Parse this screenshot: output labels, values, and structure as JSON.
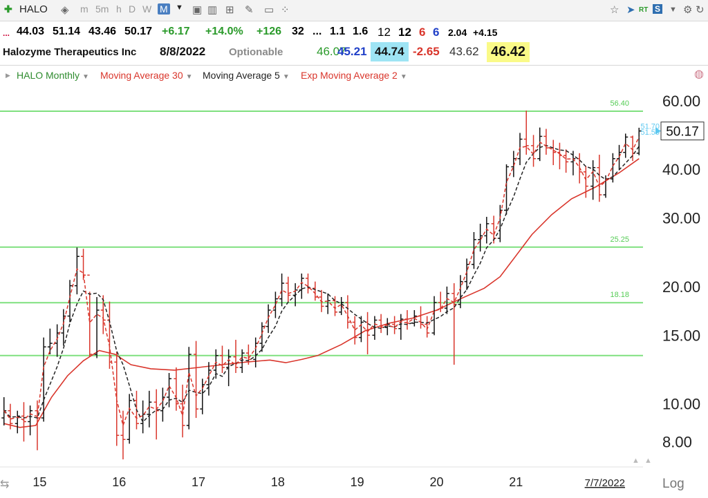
{
  "toolbar": {
    "symbol": "HALO",
    "timeframes": [
      "m",
      "5m",
      "h",
      "D",
      "W",
      "M"
    ],
    "selected_timeframe": "M",
    "icons": [
      "add-icon",
      "toggle-icon",
      "camera-icon",
      "bar-chart-icon",
      "table-icon",
      "pencil-icon",
      "chat-icon",
      "dots-icon",
      "star-icon",
      "pin-icon",
      "rt-icon",
      "s-icon",
      "gear-icon",
      "refresh-icon"
    ],
    "rt_label": "RT",
    "s_label": "S"
  },
  "quote": {
    "prefix": "...",
    "open": "44.03",
    "high": "51.14",
    "low": "43.46",
    "close": "50.17",
    "change": "+6.17",
    "change_pct": "+14.0%",
    "v1": "+126",
    "v2": "32",
    "v3": "...",
    "v4": "1.1",
    "v5": "1.6",
    "v6": "12",
    "v7": "12",
    "v8": "6",
    "v9": "6",
    "v10": "2.04",
    "v11": "+4.15"
  },
  "info": {
    "company": "Halozyme Therapeutics Inc",
    "date": "8/8/2022",
    "optionable": "Optionable",
    "f1": "46.07",
    "f2": "45.21",
    "f3": "44.74",
    "f4": "-2.65",
    "f5": "43.62",
    "f6": "46.42"
  },
  "legend": [
    {
      "label": "HALO Monthly",
      "color": "#2e8b2e"
    },
    {
      "label": "Moving Average 30",
      "color": "#d9352b"
    },
    {
      "label": "Moving Average 5",
      "color": "#222222"
    },
    {
      "label": "Exp Moving Average 2",
      "color": "#d9352b"
    }
  ],
  "chart_data": {
    "type": "line",
    "scale": "log",
    "ylim": [
      7,
      64
    ],
    "y_ticks": [
      "60.00",
      "40.00",
      "30.00",
      "20.00",
      "15.00",
      "10.00",
      "8.00"
    ],
    "x_ticks": [
      "15",
      "16",
      "17",
      "18",
      "19",
      "20",
      "21"
    ],
    "x_domain": [
      2014.5,
      2022.6
    ],
    "date_label": "7/7/2022",
    "axis_mode": "Log",
    "last_price": "50.17",
    "price_labels": [
      "51.70",
      "51.50"
    ],
    "horizontal_lines": [
      {
        "value": 56.4,
        "label": "56.40"
      },
      {
        "value": 25.25,
        "label": "25.25"
      },
      {
        "value": 18.18,
        "label": "18.18"
      },
      {
        "value": 13.3,
        "label": ""
      }
    ],
    "colors": {
      "hline": "#7fe07f",
      "hline_label": "#55cc55",
      "ma30": "#d9352b",
      "ma5": "#222222",
      "ema2": "#d9352b",
      "bar_up": "#111111",
      "bar_down": "#d9352b",
      "price_label": "#5cc8f0"
    },
    "bars": [
      {
        "t": 2014.55,
        "o": 9.2,
        "h": 10.4,
        "l": 8.8,
        "c": 9.6
      },
      {
        "t": 2014.63,
        "o": 9.6,
        "h": 10.0,
        "l": 8.6,
        "c": 8.9
      },
      {
        "t": 2014.72,
        "o": 8.9,
        "h": 9.6,
        "l": 8.4,
        "c": 9.3
      },
      {
        "t": 2014.8,
        "o": 9.3,
        "h": 10.1,
        "l": 8.0,
        "c": 9.0
      },
      {
        "t": 2014.88,
        "o": 9.0,
        "h": 9.9,
        "l": 8.3,
        "c": 9.6
      },
      {
        "t": 2014.97,
        "o": 9.6,
        "h": 10.2,
        "l": 7.6,
        "c": 9.2
      },
      {
        "t": 2015.05,
        "o": 9.2,
        "h": 14.8,
        "l": 9.0,
        "c": 14.0
      },
      {
        "t": 2015.13,
        "o": 14.0,
        "h": 15.6,
        "l": 13.4,
        "c": 14.3
      },
      {
        "t": 2015.22,
        "o": 14.3,
        "h": 16.0,
        "l": 13.2,
        "c": 15.2
      },
      {
        "t": 2015.3,
        "o": 15.2,
        "h": 17.5,
        "l": 14.1,
        "c": 16.8
      },
      {
        "t": 2015.38,
        "o": 16.8,
        "h": 20.8,
        "l": 16.2,
        "c": 20.1
      },
      {
        "t": 2015.47,
        "o": 20.1,
        "h": 25.2,
        "l": 19.1,
        "c": 23.9
      },
      {
        "t": 2015.55,
        "o": 23.9,
        "h": 25.0,
        "l": 20.8,
        "c": 21.4
      },
      {
        "t": 2015.63,
        "o": 21.4,
        "h": 19.4,
        "l": 13.2,
        "c": 13.4
      },
      {
        "t": 2015.72,
        "o": 13.4,
        "h": 18.8,
        "l": 13.1,
        "c": 17.4
      },
      {
        "t": 2015.8,
        "o": 17.4,
        "h": 19.0,
        "l": 15.1,
        "c": 16.4
      },
      {
        "t": 2015.88,
        "o": 16.4,
        "h": 18.3,
        "l": 12.3,
        "c": 12.8
      },
      {
        "t": 2015.97,
        "o": 12.8,
        "h": 13.6,
        "l": 7.8,
        "c": 8.3
      },
      {
        "t": 2016.05,
        "o": 8.3,
        "h": 9.6,
        "l": 7.2,
        "c": 8.1
      },
      {
        "t": 2016.13,
        "o": 8.1,
        "h": 10.6,
        "l": 7.9,
        "c": 10.2
      },
      {
        "t": 2016.22,
        "o": 10.2,
        "h": 10.8,
        "l": 8.6,
        "c": 8.9
      },
      {
        "t": 2016.3,
        "o": 8.9,
        "h": 10.2,
        "l": 8.4,
        "c": 9.4
      },
      {
        "t": 2016.38,
        "o": 9.4,
        "h": 10.8,
        "l": 8.7,
        "c": 10.1
      },
      {
        "t": 2016.47,
        "o": 10.1,
        "h": 10.9,
        "l": 8.1,
        "c": 9.6
      },
      {
        "t": 2016.55,
        "o": 9.6,
        "h": 11.0,
        "l": 9.0,
        "c": 10.4
      },
      {
        "t": 2016.63,
        "o": 10.4,
        "h": 12.0,
        "l": 9.8,
        "c": 11.6
      },
      {
        "t": 2016.72,
        "o": 11.6,
        "h": 12.4,
        "l": 9.6,
        "c": 10.0
      },
      {
        "t": 2016.8,
        "o": 10.0,
        "h": 11.2,
        "l": 8.2,
        "c": 8.8
      },
      {
        "t": 2016.88,
        "o": 8.8,
        "h": 14.0,
        "l": 8.6,
        "c": 13.4
      },
      {
        "t": 2016.97,
        "o": 13.4,
        "h": 14.5,
        "l": 9.2,
        "c": 9.7
      },
      {
        "t": 2017.05,
        "o": 9.7,
        "h": 11.6,
        "l": 9.4,
        "c": 11.2
      },
      {
        "t": 2017.13,
        "o": 11.2,
        "h": 12.8,
        "l": 10.5,
        "c": 12.2
      },
      {
        "t": 2017.22,
        "o": 12.2,
        "h": 13.8,
        "l": 11.6,
        "c": 13.3
      },
      {
        "t": 2017.3,
        "o": 13.3,
        "h": 14.1,
        "l": 12.0,
        "c": 12.4
      },
      {
        "t": 2017.38,
        "o": 12.4,
        "h": 13.8,
        "l": 11.1,
        "c": 13.2
      },
      {
        "t": 2017.47,
        "o": 13.2,
        "h": 14.6,
        "l": 12.0,
        "c": 12.4
      },
      {
        "t": 2017.55,
        "o": 12.4,
        "h": 13.8,
        "l": 12.0,
        "c": 13.5
      },
      {
        "t": 2017.63,
        "o": 13.5,
        "h": 14.2,
        "l": 12.6,
        "c": 13.0
      },
      {
        "t": 2017.72,
        "o": 13.0,
        "h": 14.8,
        "l": 12.4,
        "c": 14.3
      },
      {
        "t": 2017.8,
        "o": 14.3,
        "h": 16.2,
        "l": 13.6,
        "c": 15.8
      },
      {
        "t": 2017.88,
        "o": 15.8,
        "h": 18.0,
        "l": 15.2,
        "c": 17.4
      },
      {
        "t": 2017.97,
        "o": 17.4,
        "h": 19.4,
        "l": 16.6,
        "c": 18.6
      },
      {
        "t": 2018.05,
        "o": 18.6,
        "h": 21.6,
        "l": 17.8,
        "c": 20.4
      },
      {
        "t": 2018.13,
        "o": 20.4,
        "h": 21.2,
        "l": 18.2,
        "c": 19.0
      },
      {
        "t": 2018.22,
        "o": 19.0,
        "h": 20.4,
        "l": 17.8,
        "c": 19.6
      },
      {
        "t": 2018.3,
        "o": 19.6,
        "h": 21.6,
        "l": 18.6,
        "c": 21.0
      },
      {
        "t": 2018.38,
        "o": 21.0,
        "h": 21.6,
        "l": 19.2,
        "c": 19.8
      },
      {
        "t": 2018.47,
        "o": 19.8,
        "h": 20.6,
        "l": 18.4,
        "c": 18.8
      },
      {
        "t": 2018.55,
        "o": 18.8,
        "h": 19.6,
        "l": 17.2,
        "c": 17.8
      },
      {
        "t": 2018.63,
        "o": 17.8,
        "h": 19.2,
        "l": 17.0,
        "c": 18.4
      },
      {
        "t": 2018.72,
        "o": 18.4,
        "h": 18.9,
        "l": 16.8,
        "c": 17.2
      },
      {
        "t": 2018.8,
        "o": 17.2,
        "h": 18.8,
        "l": 16.9,
        "c": 18.2
      },
      {
        "t": 2018.88,
        "o": 18.2,
        "h": 19.0,
        "l": 15.6,
        "c": 16.2
      },
      {
        "t": 2018.97,
        "o": 16.2,
        "h": 16.8,
        "l": 14.2,
        "c": 14.8
      },
      {
        "t": 2019.05,
        "o": 14.8,
        "h": 16.8,
        "l": 14.4,
        "c": 16.2
      },
      {
        "t": 2019.13,
        "o": 16.2,
        "h": 17.2,
        "l": 13.4,
        "c": 15.0
      },
      {
        "t": 2019.22,
        "o": 15.0,
        "h": 16.8,
        "l": 14.6,
        "c": 16.4
      },
      {
        "t": 2019.3,
        "o": 16.4,
        "h": 17.0,
        "l": 15.2,
        "c": 15.7
      },
      {
        "t": 2019.38,
        "o": 15.7,
        "h": 16.6,
        "l": 15.0,
        "c": 16.0
      },
      {
        "t": 2019.47,
        "o": 16.0,
        "h": 16.8,
        "l": 15.1,
        "c": 15.6
      },
      {
        "t": 2019.55,
        "o": 15.6,
        "h": 17.0,
        "l": 14.6,
        "c": 16.5
      },
      {
        "t": 2019.63,
        "o": 16.5,
        "h": 17.4,
        "l": 15.5,
        "c": 16.1
      },
      {
        "t": 2019.72,
        "o": 16.1,
        "h": 17.4,
        "l": 15.8,
        "c": 16.8
      },
      {
        "t": 2019.8,
        "o": 16.8,
        "h": 17.8,
        "l": 15.6,
        "c": 16.0
      },
      {
        "t": 2019.88,
        "o": 16.0,
        "h": 16.8,
        "l": 14.8,
        "c": 15.2
      },
      {
        "t": 2019.97,
        "o": 15.2,
        "h": 18.9,
        "l": 15.0,
        "c": 18.2
      },
      {
        "t": 2020.05,
        "o": 18.2,
        "h": 19.4,
        "l": 17.2,
        "c": 17.6
      },
      {
        "t": 2020.13,
        "o": 17.6,
        "h": 20.0,
        "l": 17.0,
        "c": 19.2
      },
      {
        "t": 2020.22,
        "o": 19.2,
        "h": 20.4,
        "l": 12.6,
        "c": 18.0
      },
      {
        "t": 2020.3,
        "o": 18.0,
        "h": 21.4,
        "l": 17.6,
        "c": 20.6
      },
      {
        "t": 2020.38,
        "o": 20.6,
        "h": 23.6,
        "l": 19.6,
        "c": 22.8
      },
      {
        "t": 2020.47,
        "o": 22.8,
        "h": 27.6,
        "l": 22.2,
        "c": 26.4
      },
      {
        "t": 2020.55,
        "o": 26.4,
        "h": 29.0,
        "l": 24.6,
        "c": 27.0
      },
      {
        "t": 2020.63,
        "o": 27.0,
        "h": 30.2,
        "l": 25.8,
        "c": 29.0
      },
      {
        "t": 2020.72,
        "o": 29.0,
        "h": 30.4,
        "l": 25.8,
        "c": 26.6
      },
      {
        "t": 2020.8,
        "o": 26.6,
        "h": 32.4,
        "l": 26.0,
        "c": 31.4
      },
      {
        "t": 2020.88,
        "o": 31.4,
        "h": 41.2,
        "l": 30.6,
        "c": 40.6
      },
      {
        "t": 2020.97,
        "o": 40.6,
        "h": 44.6,
        "l": 38.2,
        "c": 42.6
      },
      {
        "t": 2021.05,
        "o": 42.6,
        "h": 49.6,
        "l": 41.0,
        "c": 47.8
      },
      {
        "t": 2021.13,
        "o": 47.8,
        "h": 56.6,
        "l": 43.6,
        "c": 46.0
      },
      {
        "t": 2021.22,
        "o": 46.0,
        "h": 49.0,
        "l": 40.6,
        "c": 42.6
      },
      {
        "t": 2021.3,
        "o": 42.6,
        "h": 51.2,
        "l": 42.0,
        "c": 48.6
      },
      {
        "t": 2021.38,
        "o": 48.6,
        "h": 50.8,
        "l": 43.6,
        "c": 45.4
      },
      {
        "t": 2021.47,
        "o": 45.4,
        "h": 47.6,
        "l": 41.0,
        "c": 44.2
      },
      {
        "t": 2021.55,
        "o": 44.2,
        "h": 46.8,
        "l": 40.0,
        "c": 43.4
      },
      {
        "t": 2021.63,
        "o": 43.4,
        "h": 45.0,
        "l": 39.2,
        "c": 41.8
      },
      {
        "t": 2021.72,
        "o": 41.8,
        "h": 44.6,
        "l": 38.6,
        "c": 42.6
      },
      {
        "t": 2021.8,
        "o": 42.6,
        "h": 44.0,
        "l": 36.8,
        "c": 39.4
      },
      {
        "t": 2021.88,
        "o": 39.4,
        "h": 40.8,
        "l": 33.8,
        "c": 36.2
      },
      {
        "t": 2021.97,
        "o": 36.2,
        "h": 42.2,
        "l": 33.4,
        "c": 40.4
      },
      {
        "t": 2022.05,
        "o": 40.4,
        "h": 43.6,
        "l": 33.0,
        "c": 34.4
      },
      {
        "t": 2022.13,
        "o": 34.4,
        "h": 38.6,
        "l": 33.8,
        "c": 37.8
      },
      {
        "t": 2022.22,
        "o": 37.8,
        "h": 44.0,
        "l": 37.0,
        "c": 42.6
      },
      {
        "t": 2022.3,
        "o": 42.6,
        "h": 46.2,
        "l": 40.0,
        "c": 44.2
      },
      {
        "t": 2022.38,
        "o": 44.2,
        "h": 49.4,
        "l": 42.8,
        "c": 48.4
      },
      {
        "t": 2022.47,
        "o": 48.4,
        "h": 48.8,
        "l": 42.0,
        "c": 44.0
      },
      {
        "t": 2022.55,
        "o": 44.0,
        "h": 51.14,
        "l": 43.46,
        "c": 50.17
      }
    ],
    "ma30": [
      [
        2014.55,
        8.9
      ],
      [
        2014.75,
        8.7
      ],
      [
        2014.95,
        8.8
      ],
      [
        2015.15,
        10.4
      ],
      [
        2015.35,
        11.8
      ],
      [
        2015.55,
        12.9
      ],
      [
        2015.75,
        13.7
      ],
      [
        2015.95,
        13.4
      ],
      [
        2016.15,
        12.6
      ],
      [
        2016.4,
        12.3
      ],
      [
        2016.7,
        12.2
      ],
      [
        2017.0,
        12.4
      ],
      [
        2017.3,
        12.6
      ],
      [
        2017.6,
        12.8
      ],
      [
        2017.9,
        12.95
      ],
      [
        2018.1,
        12.75
      ],
      [
        2018.3,
        13.0
      ],
      [
        2018.5,
        13.3
      ],
      [
        2018.8,
        14.2
      ],
      [
        2019.1,
        15.4
      ],
      [
        2019.4,
        16.1
      ],
      [
        2019.7,
        16.6
      ],
      [
        2020.0,
        17.4
      ],
      [
        2020.3,
        18.6
      ],
      [
        2020.6,
        19.8
      ],
      [
        2020.8,
        21.2
      ],
      [
        2021.0,
        24.0
      ],
      [
        2021.2,
        27.2
      ],
      [
        2021.45,
        30.6
      ],
      [
        2021.7,
        33.6
      ],
      [
        2022.0,
        36.0
      ],
      [
        2022.3,
        39.2
      ],
      [
        2022.55,
        42.6
      ]
    ]
  }
}
